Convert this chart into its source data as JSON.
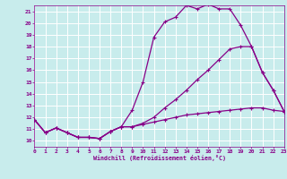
{
  "xlabel": "Windchill (Refroidissement éolien,°C)",
  "background_color": "#c8ecec",
  "grid_color": "#ffffff",
  "line_color": "#880088",
  "x_min": 0,
  "x_max": 23,
  "y_min": 9.5,
  "y_max": 21.5,
  "x_ticks": [
    0,
    1,
    2,
    3,
    4,
    5,
    6,
    7,
    8,
    9,
    10,
    11,
    12,
    13,
    14,
    15,
    16,
    17,
    18,
    19,
    20,
    21,
    22,
    23
  ],
  "y_ticks": [
    10,
    11,
    12,
    13,
    14,
    15,
    16,
    17,
    18,
    19,
    20,
    21
  ],
  "curve1_x": [
    0,
    1,
    2,
    3,
    4,
    5,
    6,
    7,
    8,
    9,
    10,
    11,
    12,
    13,
    14,
    15,
    16,
    17,
    18,
    19,
    20,
    21,
    22,
    23
  ],
  "curve1_y": [
    11.8,
    10.7,
    11.1,
    10.7,
    10.3,
    10.3,
    10.2,
    10.8,
    11.2,
    12.6,
    15.0,
    18.8,
    20.1,
    20.5,
    21.5,
    21.2,
    21.6,
    21.2,
    21.2,
    19.8,
    18.0,
    15.8,
    14.3,
    12.5
  ],
  "curve2_x": [
    0,
    1,
    2,
    3,
    4,
    5,
    6,
    7,
    8,
    9,
    10,
    11,
    12,
    13,
    14,
    15,
    16,
    17,
    18,
    19,
    20,
    21,
    22,
    23
  ],
  "curve2_y": [
    11.8,
    10.7,
    11.1,
    10.7,
    10.3,
    10.3,
    10.2,
    10.8,
    11.2,
    11.2,
    11.4,
    11.6,
    11.8,
    12.0,
    12.2,
    12.3,
    12.4,
    12.5,
    12.6,
    12.7,
    12.8,
    12.8,
    12.6,
    12.5
  ],
  "curve3_x": [
    0,
    1,
    2,
    3,
    4,
    5,
    6,
    7,
    8,
    9,
    10,
    11,
    12,
    13,
    14,
    15,
    16,
    17,
    18,
    19,
    20,
    21,
    22,
    23
  ],
  "curve3_y": [
    11.8,
    10.7,
    11.1,
    10.7,
    10.3,
    10.3,
    10.2,
    10.8,
    11.2,
    11.2,
    11.5,
    12.0,
    12.8,
    13.5,
    14.3,
    15.2,
    16.0,
    16.9,
    17.8,
    18.0,
    18.0,
    15.8,
    14.3,
    12.5
  ]
}
